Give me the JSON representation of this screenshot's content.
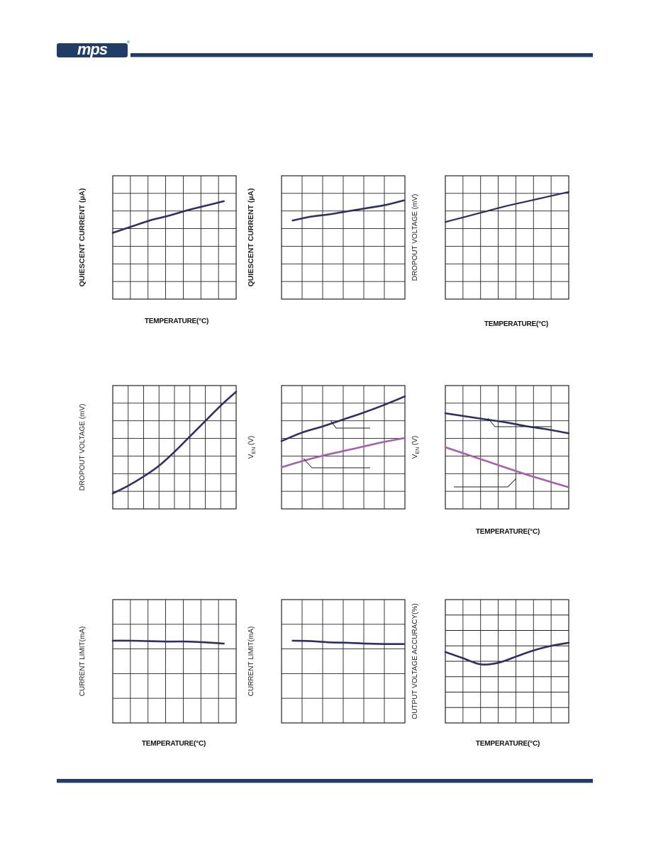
{
  "brand": {
    "logo_text": "mps",
    "colors": {
      "navy": "#1f3d66",
      "accent": "#7dd3e8"
    }
  },
  "colors": {
    "dark": "#2e2f64",
    "purple": "#a85fab"
  },
  "chart_data": [
    {
      "type": "line",
      "ylabel": "QUIESCENT CURRENT (µA)",
      "xlabel": "TEMPERATURE(°C)",
      "grid": true,
      "x": [
        0,
        1,
        2,
        3,
        4,
        5,
        6
      ],
      "series": [
        {
          "values": [
            4.3,
            4.7,
            5.1,
            5.4,
            5.75,
            6.05,
            6.35
          ]
        }
      ]
    },
    {
      "type": "line",
      "ylabel": "QUIESCENT CURRENT (µA)",
      "xlabel": "",
      "grid": true,
      "x": [
        0,
        1,
        2,
        3,
        4,
        5,
        6
      ],
      "series": [
        {
          "values": [
            5.1,
            5.35,
            5.5,
            5.7,
            5.9,
            6.1,
            6.4
          ]
        }
      ]
    },
    {
      "type": "line",
      "ylabel": "DROPOUT VOLTAGE (mV)",
      "xlabel": "TEMPERATURE(°C)",
      "grid": true,
      "x": [
        0,
        1,
        2,
        3,
        4,
        5,
        6
      ],
      "series": [
        {
          "values": [
            5.0,
            5.35,
            5.7,
            6.05,
            6.35,
            6.65,
            6.95
          ]
        }
      ]
    },
    {
      "type": "line",
      "ylabel": "DROPOUT VOLTAGE (mV)",
      "xlabel": "",
      "grid": true,
      "x": [
        0,
        1,
        2,
        3,
        4,
        5,
        6,
        7,
        8
      ],
      "series": [
        {
          "values": [
            1.0,
            1.5,
            2.1,
            2.8,
            3.7,
            4.7,
            5.7,
            6.7,
            7.6
          ]
        }
      ]
    },
    {
      "type": "line",
      "ylabel": "V_EN (V)",
      "xlabel": "",
      "grid": true,
      "x": [
        0,
        1,
        2,
        3,
        4,
        5,
        6
      ],
      "series": [
        {
          "values": [
            4.4,
            4.95,
            5.35,
            5.8,
            6.25,
            6.75,
            7.3
          ]
        },
        {
          "values": [
            2.7,
            3.1,
            3.45,
            3.75,
            4.05,
            4.35,
            4.6
          ]
        }
      ]
    },
    {
      "type": "line",
      "ylabel": "V_EN (V)",
      "xlabel": "TEMPERATURE(°C)",
      "grid": true,
      "x": [
        0,
        1,
        2,
        3,
        4,
        5,
        6
      ],
      "series": [
        {
          "values": [
            6.2,
            6.0,
            5.8,
            5.6,
            5.35,
            5.15,
            4.9
          ]
        },
        {
          "values": [
            4.0,
            3.55,
            3.1,
            2.65,
            2.2,
            1.8,
            1.4
          ]
        }
      ]
    },
    {
      "type": "line",
      "ylabel": "CURRENT LIMIT(mA)",
      "xlabel": "TEMPERATURE(°C)",
      "grid": true,
      "x": [
        0,
        1,
        2,
        3,
        4,
        5,
        6
      ],
      "series": [
        {
          "values": [
            3.0,
            3.0,
            2.99,
            2.98,
            2.98,
            2.96,
            2.93
          ]
        }
      ]
    },
    {
      "type": "line",
      "ylabel": "CURRENT LIMIT(mA)",
      "xlabel": "",
      "grid": true,
      "x": [
        0,
        1,
        2,
        3,
        4,
        5,
        6
      ],
      "series": [
        {
          "values": [
            3.0,
            2.99,
            2.96,
            2.95,
            2.93,
            2.92,
            2.92
          ]
        }
      ]
    },
    {
      "type": "line",
      "ylabel": "OUTPUT VOLTAGE ACCURACY(%)",
      "xlabel": "TEMPERATURE(°C)",
      "grid": true,
      "x": [
        0,
        1,
        2,
        3,
        4,
        5,
        6,
        7
      ],
      "series": [
        {
          "values": [
            4.6,
            4.2,
            3.8,
            3.9,
            4.3,
            4.7,
            5.0,
            5.2
          ]
        }
      ]
    }
  ]
}
